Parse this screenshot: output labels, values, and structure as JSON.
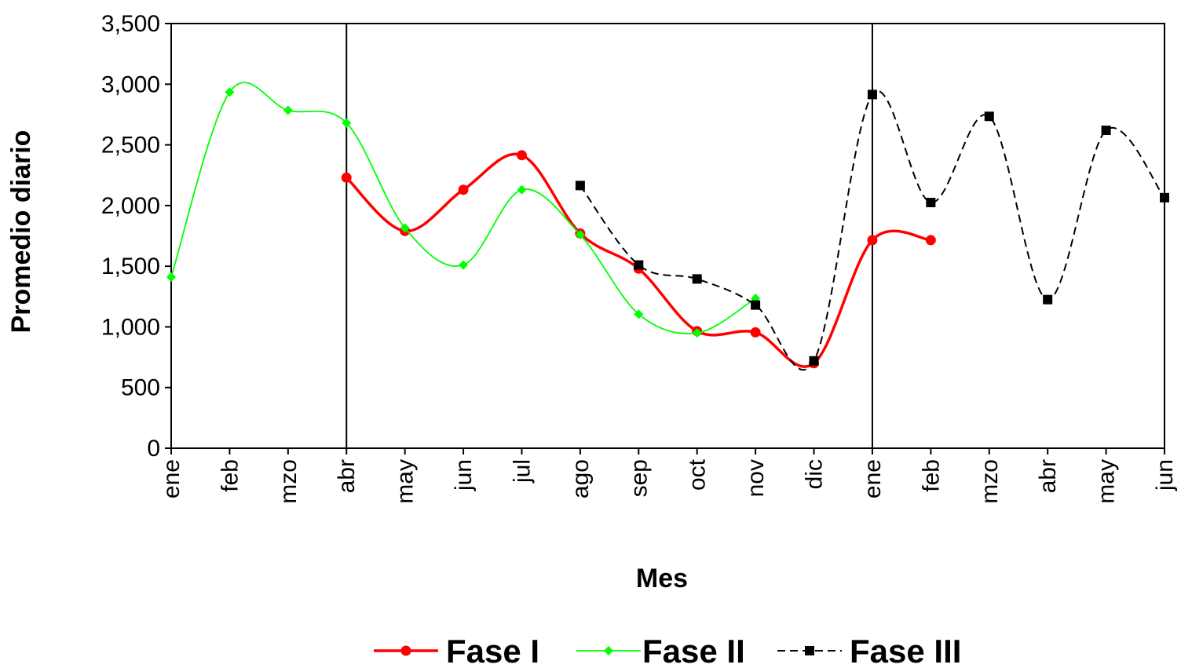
{
  "chart_data": {
    "type": "line",
    "title": "",
    "xlabel": "Mes",
    "ylabel": "Promedio diario",
    "ylim": [
      0,
      3500
    ],
    "yticks": [
      "0",
      "500",
      "1,000",
      "1,500",
      "2,000",
      "2,500",
      "3,000",
      "3,500"
    ],
    "categories": [
      "ene",
      "feb",
      "mzo",
      "abr",
      "may",
      "jun",
      "jul",
      "ago",
      "sep",
      "oct",
      "nov",
      "dic",
      "ene",
      "feb",
      "mzo",
      "abr",
      "may",
      "jun"
    ],
    "vertical_lines_at": [
      "abr",
      "ene"
    ],
    "grid": false,
    "legend_position": "bottom",
    "series": [
      {
        "name": "Fase I",
        "color": "#ff0000",
        "marker": "circle",
        "line_style": "solid",
        "values": [
          null,
          null,
          null,
          2230,
          1790,
          2130,
          2415,
          1770,
          1480,
          965,
          955,
          700,
          1715,
          1715,
          null,
          null,
          null,
          null
        ]
      },
      {
        "name": "Fase II",
        "color": "#00ff00",
        "marker": "diamond",
        "line_style": "solid",
        "values": [
          1410,
          2935,
          2785,
          2680,
          1815,
          1510,
          2130,
          1760,
          1105,
          950,
          1235,
          null,
          null,
          null,
          null,
          null,
          null,
          null
        ]
      },
      {
        "name": "Fase III",
        "color": "#000000",
        "marker": "square",
        "line_style": "dashed",
        "values": [
          null,
          null,
          null,
          null,
          null,
          null,
          null,
          2165,
          1510,
          1395,
          1180,
          720,
          2915,
          2025,
          2735,
          1225,
          2620,
          2065
        ]
      }
    ]
  }
}
